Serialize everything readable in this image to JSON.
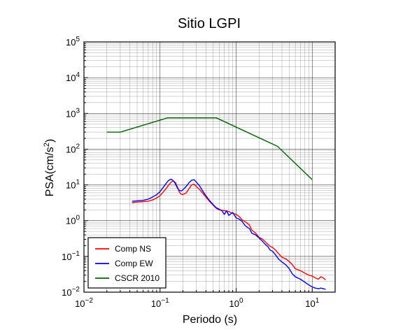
{
  "chart_data": {
    "type": "line",
    "title": "Sitio LGPI",
    "xlabel": "Periodo (s)",
    "ylabel_base": "PSA(cm/s",
    "ylabel_sup": "2",
    "ylabel_end": ")",
    "xscale": "log",
    "yscale": "log",
    "xlim": [
      0.01,
      20
    ],
    "ylim": [
      0.01,
      100000
    ],
    "x_ticks": [
      {
        "value": 0.01,
        "base": "10",
        "exp": "−2"
      },
      {
        "value": 0.1,
        "base": "10",
        "exp": "−1"
      },
      {
        "value": 1,
        "base": "10",
        "exp": "0"
      },
      {
        "value": 10,
        "base": "10",
        "exp": "1"
      }
    ],
    "y_ticks": [
      {
        "value": 0.01,
        "base": "10",
        "exp": "−2"
      },
      {
        "value": 0.1,
        "base": "10",
        "exp": "−1"
      },
      {
        "value": 1,
        "base": "10",
        "exp": "0"
      },
      {
        "value": 10,
        "base": "10",
        "exp": "1"
      },
      {
        "value": 100,
        "base": "10",
        "exp": "2"
      },
      {
        "value": 1000,
        "base": "10",
        "exp": "3"
      },
      {
        "value": 10000,
        "base": "10",
        "exp": "4"
      },
      {
        "value": 100000,
        "base": "10",
        "exp": "5"
      }
    ],
    "grid": true,
    "legend_position": "bottom-left",
    "series": [
      {
        "name": "Comp NS",
        "color": "#ff0000",
        "points": [
          [
            0.043,
            3.2
          ],
          [
            0.05,
            3.3
          ],
          [
            0.06,
            3.4
          ],
          [
            0.07,
            3.5
          ],
          [
            0.08,
            3.8
          ],
          [
            0.09,
            4.3
          ],
          [
            0.1,
            5.0
          ],
          [
            0.11,
            6.3
          ],
          [
            0.12,
            7.9
          ],
          [
            0.13,
            10.0
          ],
          [
            0.14,
            12.0
          ],
          [
            0.15,
            13.0
          ],
          [
            0.16,
            11.5
          ],
          [
            0.17,
            8.5
          ],
          [
            0.18,
            6.2
          ],
          [
            0.19,
            5.5
          ],
          [
            0.2,
            5.4
          ],
          [
            0.22,
            5.9
          ],
          [
            0.24,
            7.8
          ],
          [
            0.26,
            10.0
          ],
          [
            0.28,
            10.5
          ],
          [
            0.3,
            9.0
          ],
          [
            0.33,
            7.5
          ],
          [
            0.36,
            6.0
          ],
          [
            0.4,
            4.6
          ],
          [
            0.45,
            3.4
          ],
          [
            0.5,
            2.7
          ],
          [
            0.55,
            2.2
          ],
          [
            0.6,
            2.0
          ],
          [
            0.7,
            1.9
          ],
          [
            0.8,
            1.8
          ],
          [
            0.9,
            1.6
          ],
          [
            1.0,
            1.5
          ],
          [
            1.1,
            1.3
          ],
          [
            1.2,
            1.05
          ],
          [
            1.3,
            0.95
          ],
          [
            1.4,
            0.85
          ],
          [
            1.5,
            0.75
          ],
          [
            1.6,
            0.55
          ],
          [
            1.8,
            0.45
          ],
          [
            2.0,
            0.34
          ],
          [
            2.2,
            0.31
          ],
          [
            2.4,
            0.26
          ],
          [
            2.6,
            0.22
          ],
          [
            2.8,
            0.19
          ],
          [
            3.0,
            0.18
          ],
          [
            3.3,
            0.15
          ],
          [
            3.6,
            0.12
          ],
          [
            4.0,
            0.095
          ],
          [
            4.5,
            0.085
          ],
          [
            5.0,
            0.072
          ],
          [
            5.5,
            0.058
          ],
          [
            6.0,
            0.045
          ],
          [
            7.0,
            0.04
          ],
          [
            8.0,
            0.034
          ],
          [
            9.0,
            0.03
          ],
          [
            10.0,
            0.028
          ],
          [
            11.0,
            0.025
          ],
          [
            12.0,
            0.023
          ],
          [
            13.0,
            0.027
          ],
          [
            14.0,
            0.025
          ],
          [
            15.0,
            0.022
          ]
        ]
      },
      {
        "name": "Comp EW",
        "color": "#0000ff",
        "points": [
          [
            0.043,
            3.5
          ],
          [
            0.05,
            3.6
          ],
          [
            0.06,
            3.7
          ],
          [
            0.07,
            4.0
          ],
          [
            0.08,
            4.6
          ],
          [
            0.09,
            5.3
          ],
          [
            0.1,
            6.5
          ],
          [
            0.11,
            8.5
          ],
          [
            0.12,
            11.0
          ],
          [
            0.13,
            13.5
          ],
          [
            0.14,
            14.5
          ],
          [
            0.15,
            13.0
          ],
          [
            0.16,
            10.5
          ],
          [
            0.17,
            8.0
          ],
          [
            0.18,
            7.0
          ],
          [
            0.19,
            6.8
          ],
          [
            0.2,
            7.3
          ],
          [
            0.22,
            9.0
          ],
          [
            0.24,
            11.5
          ],
          [
            0.26,
            13.5
          ],
          [
            0.28,
            14.0
          ],
          [
            0.3,
            12.0
          ],
          [
            0.33,
            9.5
          ],
          [
            0.36,
            7.0
          ],
          [
            0.4,
            5.0
          ],
          [
            0.45,
            3.6
          ],
          [
            0.5,
            2.8
          ],
          [
            0.55,
            2.3
          ],
          [
            0.6,
            2.1
          ],
          [
            0.65,
            1.9
          ],
          [
            0.7,
            1.5
          ],
          [
            0.75,
            1.9
          ],
          [
            0.8,
            1.4
          ],
          [
            0.9,
            1.7
          ],
          [
            1.0,
            1.2
          ],
          [
            1.1,
            1.1
          ],
          [
            1.2,
            0.95
          ],
          [
            1.3,
            0.75
          ],
          [
            1.4,
            0.65
          ],
          [
            1.5,
            0.6
          ],
          [
            1.6,
            0.45
          ],
          [
            1.8,
            0.4
          ],
          [
            2.0,
            0.33
          ],
          [
            2.2,
            0.27
          ],
          [
            2.4,
            0.22
          ],
          [
            2.6,
            0.19
          ],
          [
            2.8,
            0.15
          ],
          [
            3.0,
            0.14
          ],
          [
            3.3,
            0.11
          ],
          [
            3.6,
            0.085
          ],
          [
            4.0,
            0.07
          ],
          [
            4.5,
            0.058
          ],
          [
            5.0,
            0.045
          ],
          [
            5.5,
            0.032
          ],
          [
            6.0,
            0.027
          ],
          [
            7.0,
            0.023
          ],
          [
            8.0,
            0.019
          ],
          [
            9.0,
            0.016
          ],
          [
            10.0,
            0.014
          ],
          [
            11.0,
            0.013
          ],
          [
            12.0,
            0.0125
          ],
          [
            13.0,
            0.013
          ],
          [
            14.0,
            0.0125
          ],
          [
            15.0,
            0.012
          ]
        ]
      },
      {
        "name": "CSCR 2010",
        "color": "#006400",
        "points": [
          [
            0.02,
            300
          ],
          [
            0.03,
            300
          ],
          [
            0.125,
            750
          ],
          [
            0.55,
            750
          ],
          [
            3.5,
            120
          ],
          [
            10.0,
            14
          ]
        ]
      }
    ]
  }
}
